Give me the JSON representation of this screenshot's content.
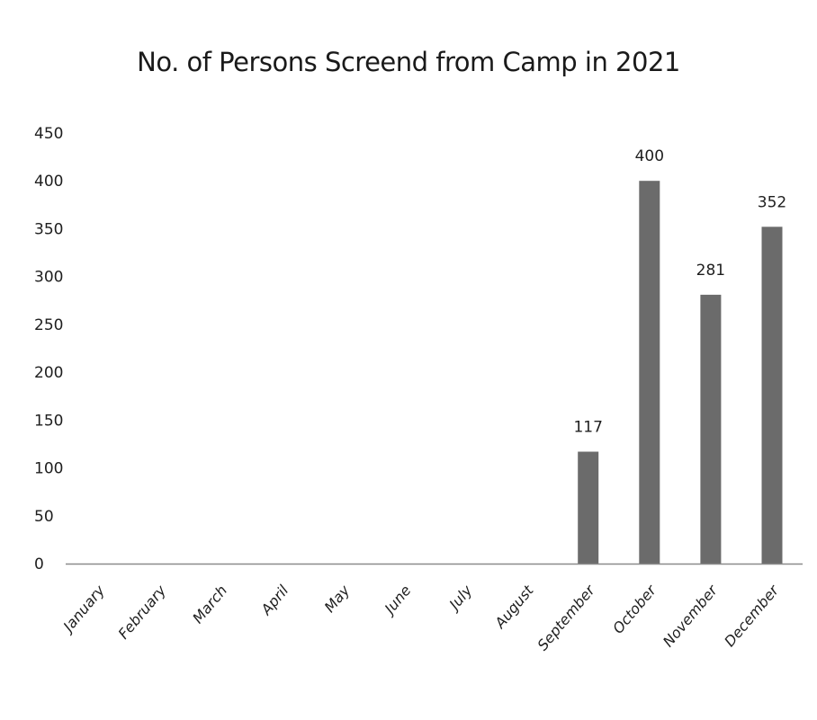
{
  "chart_data": {
    "type": "bar",
    "title": "No. of Persons Screend from Camp in 2021",
    "xlabel": "",
    "ylabel": "",
    "categories": [
      "January",
      "February",
      "March",
      "April",
      "May",
      "June",
      "July",
      "August",
      "September",
      "October",
      "November",
      "December"
    ],
    "values": [
      0,
      0,
      0,
      0,
      0,
      0,
      0,
      0,
      117,
      400,
      281,
      352
    ],
    "data_labels": [
      "",
      "",
      "",
      "",
      "",
      "",
      "",
      "",
      "117",
      "400",
      "281",
      "352"
    ],
    "ylim": [
      0,
      450
    ],
    "yticks": [
      0,
      50,
      100,
      150,
      200,
      250,
      300,
      350,
      400,
      450
    ],
    "grid": false,
    "legend": "none",
    "bar_color": "#6b6b6b",
    "axis_color": "#8a8a8a"
  }
}
